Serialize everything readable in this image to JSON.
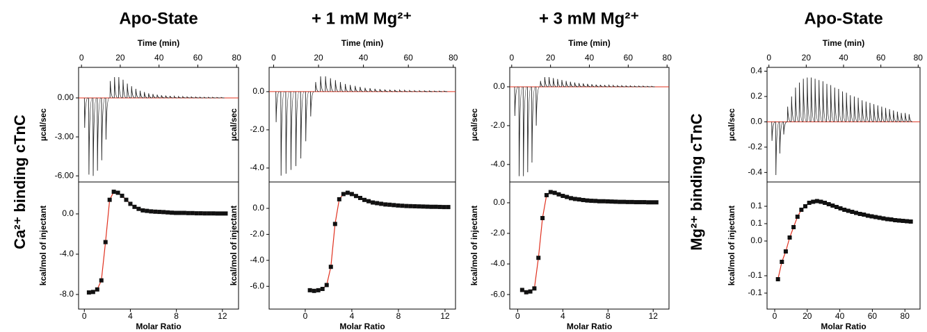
{
  "side_labels": [
    "Ca²⁺ binding cTnC",
    "Mg²⁺ binding cTnC"
  ],
  "chart_data": [
    {
      "title": "Apo-State",
      "raw": {
        "type": "spike",
        "xlabel": "Time (min)",
        "ylabel": "µcal/sec",
        "color": "#222222",
        "baseline_color": "#e0301e",
        "x": [
          1.5,
          3.7,
          5.9,
          8.1,
          10.3,
          12.5,
          14.7,
          16.9,
          19.1,
          21.3,
          23.5,
          25.7,
          27.9,
          30.1,
          32.3,
          34.5,
          36.7,
          38.9,
          41.1,
          43.3,
          45.5,
          47.7,
          49.9,
          52.1,
          54.3,
          56.5,
          58.7,
          60.9,
          63.1,
          65.3,
          67.5,
          69.7,
          71.9
        ],
        "values": [
          -2.3,
          -5.9,
          -6.0,
          -5.6,
          -4.8,
          -3.2,
          1.3,
          1.6,
          1.6,
          1.4,
          1.1,
          0.9,
          0.7,
          0.55,
          0.45,
          0.35,
          0.3,
          0.25,
          0.2,
          0.18,
          0.15,
          0.12,
          0.1,
          0.1,
          0.08,
          0.08,
          0.07,
          0.06,
          0.05,
          0.05,
          0.05,
          0.04,
          0.04
        ],
        "xlim": [
          -1.5,
          81
        ],
        "xticks": [
          0,
          20,
          40,
          60,
          80
        ],
        "ylim": [
          -6.47,
          2.35
        ],
        "yticks": [
          {
            "value": -6,
            "label": "-6.00"
          },
          {
            "value": -3,
            "label": "-3.00"
          },
          {
            "value": 0,
            "label": "0.00"
          }
        ]
      },
      "integrated": {
        "type": "scatter",
        "xlabel": "Molar Ratio",
        "ylabel": "kcal/mol of injectant",
        "color": "#111111",
        "line_color": "#e0301e",
        "x": [
          0.4,
          0.76,
          1.12,
          1.48,
          1.84,
          2.2,
          2.56,
          2.92,
          3.28,
          3.64,
          4.0,
          4.36,
          4.72,
          5.08,
          5.44,
          5.8,
          6.16,
          6.52,
          6.88,
          7.24,
          7.6,
          7.96,
          8.32,
          8.68,
          9.04,
          9.4,
          9.76,
          10.12,
          10.48,
          10.84,
          11.2,
          11.56,
          11.92,
          12.28
        ],
        "values": [
          -7.8,
          -7.75,
          -7.5,
          -6.6,
          -2.8,
          1.4,
          2.2,
          2.1,
          1.8,
          1.4,
          1.0,
          0.7,
          0.5,
          0.35,
          0.3,
          0.25,
          0.22,
          0.2,
          0.18,
          0.15,
          0.12,
          0.1,
          0.1,
          0.1,
          0.08,
          0.08,
          0.06,
          0.06,
          0.05,
          0.05,
          0.05,
          0.04,
          0.04,
          0.04
        ],
        "xlim": [
          -0.5,
          13.4
        ],
        "xticks": [
          0,
          4,
          8,
          12
        ],
        "ylim": [
          -9.45,
          3.17
        ],
        "yticks": [
          {
            "value": -8,
            "label": "-8.0"
          },
          {
            "value": -4,
            "label": "-4.0"
          },
          {
            "value": 0,
            "label": "0.0"
          }
        ]
      }
    },
    {
      "title": "+ 1 mM Mg²⁺",
      "raw": {
        "type": "spike",
        "xlabel": "Time (min)",
        "ylabel": "µcal/sec",
        "color": "#222222",
        "baseline_color": "#e0301e",
        "x": [
          1,
          3.2,
          5.4,
          7.6,
          9.8,
          12,
          14.2,
          16.4,
          18.6,
          20.8,
          23,
          25.2,
          27.4,
          29.6,
          31.8,
          34,
          36.2,
          38.4,
          40.6,
          42.8,
          45,
          47.2,
          49.4,
          51.6,
          53.8,
          56,
          58.2,
          60.4,
          62.6,
          64.8,
          67,
          69.2,
          71.4,
          73.6,
          75.8
        ],
        "values": [
          -1.6,
          -4.4,
          -4.3,
          -4.1,
          -3.9,
          -3.5,
          -2.6,
          -1.3,
          0.5,
          0.8,
          0.8,
          0.7,
          0.6,
          0.5,
          0.4,
          0.35,
          0.3,
          0.25,
          0.2,
          0.18,
          0.15,
          0.13,
          0.11,
          0.1,
          0.09,
          0.08,
          0.07,
          0.06,
          0.05,
          0.05,
          0.04,
          0.04,
          0.03,
          0.03,
          0.03
        ],
        "xlim": [
          -2,
          81
        ],
        "xticks": [
          0,
          20,
          40,
          60,
          80
        ],
        "ylim": [
          -4.73,
          1.27
        ],
        "yticks": [
          {
            "value": -4,
            "label": "-4.0"
          },
          {
            "value": -2,
            "label": "-2.0"
          },
          {
            "value": 0,
            "label": "0.0"
          }
        ]
      },
      "integrated": {
        "type": "scatter",
        "xlabel": "Molar Ratio",
        "ylabel": "kcal/mol of injectant",
        "color": "#111111",
        "line_color": "#e0301e",
        "x": [
          0.4,
          0.76,
          1.12,
          1.48,
          1.84,
          2.2,
          2.56,
          2.92,
          3.28,
          3.64,
          4.0,
          4.36,
          4.72,
          5.08,
          5.44,
          5.8,
          6.16,
          6.52,
          6.88,
          7.24,
          7.6,
          7.96,
          8.32,
          8.68,
          9.04,
          9.4,
          9.76,
          10.12,
          10.48,
          10.84,
          11.2,
          11.56,
          11.92,
          12.28
        ],
        "values": [
          -6.3,
          -6.35,
          -6.3,
          -6.2,
          -5.9,
          -4.5,
          -1.2,
          0.7,
          1.1,
          1.2,
          1.1,
          0.95,
          0.8,
          0.65,
          0.55,
          0.45,
          0.4,
          0.35,
          0.3,
          0.28,
          0.25,
          0.22,
          0.2,
          0.18,
          0.17,
          0.16,
          0.15,
          0.14,
          0.13,
          0.12,
          0.12,
          0.11,
          0.1,
          0.1
        ],
        "xlim": [
          -3.1,
          12.9
        ],
        "xticks": [
          0,
          4,
          8,
          12
        ],
        "ylim": [
          -7.75,
          2.03
        ],
        "yticks": [
          {
            "value": -6,
            "label": "-6.0"
          },
          {
            "value": -4,
            "label": "-4.0"
          },
          {
            "value": -2,
            "label": "-2.0"
          },
          {
            "value": 0,
            "label": "0.0"
          }
        ]
      }
    },
    {
      "title": "+ 3 mM Mg²⁺",
      "raw": {
        "type": "spike",
        "xlabel": "Time (min)",
        "ylabel": "µcal/sec",
        "color": "#222222",
        "baseline_color": "#e0301e",
        "x": [
          1.5,
          3.7,
          5.9,
          8.1,
          10.3,
          12.5,
          14.7,
          16.9,
          19.1,
          21.3,
          23.5,
          25.7,
          27.9,
          30.1,
          32.3,
          34.5,
          36.7,
          38.9,
          41.1,
          43.3,
          45.5,
          47.7,
          49.9,
          52.1,
          54.3,
          56.5,
          58.7,
          60.9,
          63.1,
          65.3,
          67.5,
          69.7,
          71.9
        ],
        "values": [
          -1.5,
          -4.6,
          -4.6,
          -4.4,
          -3.9,
          -2.0,
          0.3,
          0.5,
          0.5,
          0.45,
          0.4,
          0.35,
          0.3,
          0.26,
          0.22,
          0.19,
          0.17,
          0.15,
          0.13,
          0.11,
          0.1,
          0.09,
          0.08,
          0.07,
          0.06,
          0.06,
          0.05,
          0.05,
          0.04,
          0.04,
          0.04,
          0.03,
          0.03
        ],
        "xlim": [
          -1,
          81
        ],
        "xticks": [
          0,
          20,
          40,
          60,
          80
        ],
        "ylim": [
          -4.9,
          1.0
        ],
        "yticks": [
          {
            "value": -4,
            "label": "-4.0"
          },
          {
            "value": -2,
            "label": "-2.0"
          },
          {
            "value": 0,
            "label": "0.0"
          }
        ]
      },
      "integrated": {
        "type": "scatter",
        "xlabel": "Molar Ratio",
        "ylabel": "kcal/mol of injectant",
        "color": "#111111",
        "line_color": "#e0301e",
        "x": [
          0.4,
          0.76,
          1.12,
          1.48,
          1.84,
          2.2,
          2.56,
          2.92,
          3.28,
          3.64,
          4.0,
          4.36,
          4.72,
          5.08,
          5.44,
          5.8,
          6.16,
          6.52,
          6.88,
          7.24,
          7.6,
          7.96,
          8.32,
          8.68,
          9.04,
          9.4,
          9.76,
          10.12,
          10.48,
          10.84,
          11.2,
          11.56,
          11.92,
          12.28
        ],
        "values": [
          -5.7,
          -5.85,
          -5.8,
          -5.6,
          -3.6,
          -1.0,
          0.5,
          0.7,
          0.65,
          0.55,
          0.45,
          0.38,
          0.3,
          0.25,
          0.22,
          0.18,
          0.15,
          0.13,
          0.12,
          0.1,
          0.1,
          0.09,
          0.08,
          0.07,
          0.06,
          0.06,
          0.05,
          0.05,
          0.04,
          0.04,
          0.04,
          0.03,
          0.03,
          0.03
        ],
        "xlim": [
          -0.7,
          13.4
        ],
        "xticks": [
          0,
          4,
          8,
          12
        ],
        "ylim": [
          -6.95,
          1.36
        ],
        "yticks": [
          {
            "value": -6,
            "label": "-6.0"
          },
          {
            "value": -4,
            "label": "-4.0"
          },
          {
            "value": -2,
            "label": "-2.0"
          },
          {
            "value": 0,
            "label": "0.0"
          }
        ]
      }
    },
    {
      "title": "Apo-State",
      "raw": {
        "type": "spike",
        "xlabel": "Time (min)",
        "ylabel": "µcal/sec",
        "color": "#222222",
        "baseline_color": "#e0301e",
        "x": [
          1.5,
          3.6,
          5.7,
          7.8,
          9.9,
          12,
          14.1,
          16.2,
          18.3,
          20.4,
          22.5,
          24.6,
          26.7,
          28.8,
          30.9,
          33,
          35.1,
          37.2,
          39.3,
          41.4,
          43.5,
          45.6,
          47.7,
          49.8,
          51.9,
          54,
          56.1,
          58.2,
          60.3,
          62.4,
          64.5,
          66.6,
          68.7,
          70.8,
          72.9,
          75
        ],
        "values": [
          -0.15,
          -0.42,
          -0.25,
          -0.1,
          0.12,
          0.2,
          0.27,
          0.31,
          0.34,
          0.35,
          0.35,
          0.34,
          0.33,
          0.32,
          0.3,
          0.29,
          0.27,
          0.26,
          0.24,
          0.23,
          0.21,
          0.2,
          0.19,
          0.17,
          0.16,
          0.15,
          0.14,
          0.13,
          0.12,
          0.11,
          0.1,
          0.09,
          0.08,
          0.07,
          0.07,
          0.06
        ],
        "xlim": [
          -1,
          81
        ],
        "xticks": [
          0,
          20,
          40,
          60,
          80
        ],
        "ylim": [
          -0.475,
          0.43
        ],
        "yticks": [
          -0.4,
          -0.2,
          {
            "value": 0,
            "label": "0.0"
          },
          0.2,
          0.4
        ]
      },
      "integrated": {
        "type": "scatter",
        "xlabel": "Molar Ratio",
        "ylabel": "kcal/mol of injectant",
        "color": "#111111",
        "line_color": "#e0301e",
        "x": [
          2,
          4.4,
          6.8,
          9.2,
          11.6,
          14,
          16.4,
          18.8,
          21.2,
          23.6,
          26,
          28.4,
          30.8,
          33.2,
          35.6,
          38,
          40.4,
          42.8,
          45.2,
          47.6,
          50,
          52.4,
          54.8,
          57.2,
          59.6,
          62,
          64.4,
          66.8,
          69.2,
          71.6,
          74,
          76.4,
          78.8,
          81.2,
          83.6
        ],
        "values": [
          -0.11,
          -0.06,
          -0.03,
          0.01,
          0.04,
          0.07,
          0.09,
          0.1,
          0.11,
          0.113,
          0.115,
          0.113,
          0.11,
          0.106,
          0.102,
          0.098,
          0.094,
          0.09,
          0.087,
          0.084,
          0.081,
          0.078,
          0.076,
          0.073,
          0.071,
          0.069,
          0.067,
          0.065,
          0.063,
          0.062,
          0.06,
          0.059,
          0.058,
          0.057,
          0.056
        ],
        "xlim": [
          -4.7,
          89.3
        ],
        "xticks": [
          0,
          20,
          40,
          60,
          80
        ],
        "ylim": [
          -0.196,
          0.17
        ],
        "yticks": [
          {
            "value": -0.15,
            "label": "-0.1"
          },
          {
            "value": -0.1,
            "label": "-0.1"
          },
          {
            "value": 0,
            "label": "0.0"
          },
          {
            "value": 0.05,
            "label": "0.1"
          },
          0.1
        ]
      }
    }
  ]
}
